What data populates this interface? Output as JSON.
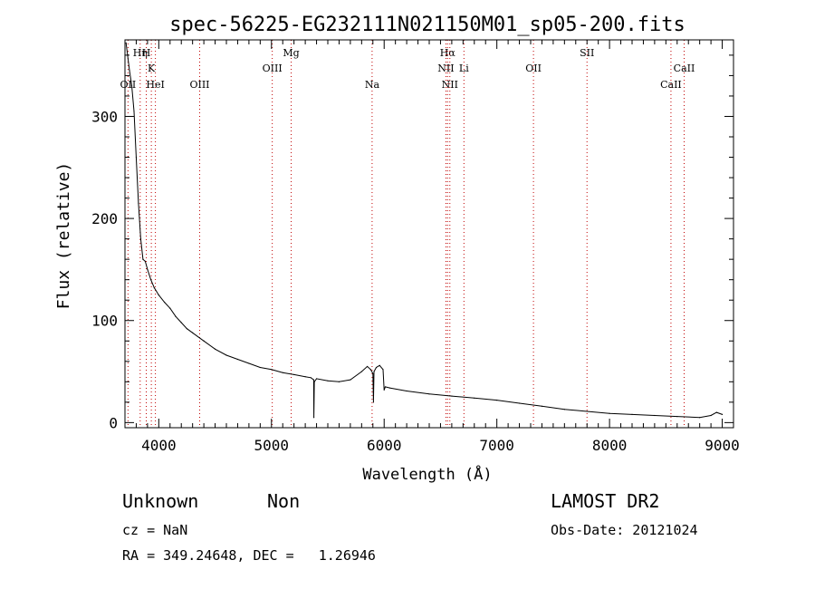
{
  "chart_data": {
    "type": "line",
    "title": "spec-56225-EG232111N021150M01_sp05-200.fits",
    "xlabel": "Wavelength (Å)",
    "ylabel": "Flux (relative)",
    "xlim": [
      3700,
      9100
    ],
    "ylim": [
      -5,
      375
    ],
    "xticks": [
      4000,
      5000,
      6000,
      7000,
      8000,
      9000
    ],
    "yticks": [
      0,
      100,
      200,
      300
    ],
    "grid": false,
    "legend": "none",
    "line_color": "#000000",
    "marker_color": "#c00000",
    "series": [
      {
        "x": [
          3710,
          3740,
          3760,
          3780,
          3800,
          3820,
          3840,
          3860,
          3880,
          3900,
          3930,
          3960,
          4000,
          4050,
          4100,
          4150,
          4200,
          4250,
          4300,
          4400,
          4500,
          4600,
          4700,
          4800,
          4900,
          5000,
          5100,
          5200,
          5300,
          5350,
          5375,
          5376,
          5380,
          5400,
          5500,
          5600,
          5700,
          5800,
          5850,
          5880,
          5900,
          5905,
          5910,
          5930,
          5960,
          5990,
          6000,
          6010,
          6050,
          6200,
          6400,
          6600,
          6800,
          7000,
          7200,
          7400,
          7600,
          7800,
          8000,
          8200,
          8400,
          8600,
          8800,
          8900,
          8950,
          9000
        ],
        "y": [
          372,
          345,
          330,
          305,
          260,
          215,
          180,
          160,
          158,
          150,
          140,
          132,
          125,
          118,
          112,
          104,
          98,
          92,
          88,
          80,
          72,
          66,
          62,
          58,
          54,
          52,
          49,
          47,
          45,
          44,
          42,
          5,
          40,
          43,
          41,
          40,
          42,
          50,
          55,
          52,
          48,
          20,
          50,
          54,
          56,
          52,
          32,
          35,
          34,
          31,
          28,
          26,
          24,
          22,
          19,
          16,
          13,
          11,
          9,
          8,
          7,
          6,
          5,
          7,
          10,
          8
        ]
      }
    ],
    "line_markers": [
      {
        "label": "OII",
        "x": 3727,
        "row": 3
      },
      {
        "label": "Hη",
        "x": 3835,
        "row": 1
      },
      {
        "label": "H",
        "x": 3889,
        "row": 1
      },
      {
        "label": "K",
        "x": 3934,
        "row": 2
      },
      {
        "label": "HeI",
        "x": 3970,
        "row": 3
      },
      {
        "label": "OIII",
        "x": 4363,
        "row": 3
      },
      {
        "label": "OIII",
        "x": 5007,
        "row": 2
      },
      {
        "label": "Mg",
        "x": 5175,
        "row": 1
      },
      {
        "label": "Na",
        "x": 5893,
        "row": 3
      },
      {
        "label": "Hα",
        "x": 6563,
        "row": 1
      },
      {
        "label": "NII",
        "x": 6548,
        "row": 2
      },
      {
        "label": "Li",
        "x": 6708,
        "row": 2
      },
      {
        "label": "NII",
        "x": 6583,
        "row": 3
      },
      {
        "label": "OII",
        "x": 7325,
        "row": 2
      },
      {
        "label": "SII",
        "x": 7800,
        "row": 1
      },
      {
        "label": "CaII",
        "x": 8545,
        "row": 3
      },
      {
        "label": "CaII",
        "x": 8662,
        "row": 2
      }
    ]
  },
  "footer": {
    "class_label": "Unknown",
    "subclass_label": "Non",
    "survey_label": "LAMOST DR2",
    "cz_label": "cz = NaN",
    "obs_date_label": "Obs-Date: 20121024",
    "coords_label": "RA = 349.24648, DEC =   1.26946"
  }
}
